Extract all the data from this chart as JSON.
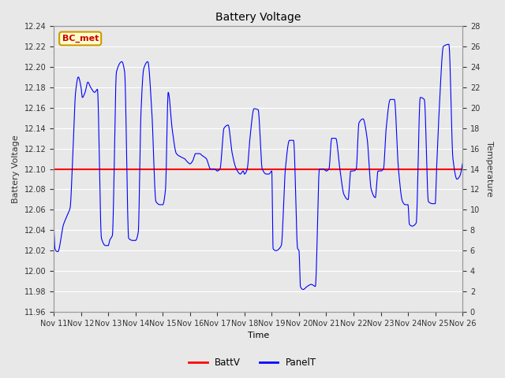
{
  "title": "Battery Voltage",
  "xlabel": "Time",
  "ylabel_left": "Battery Voltage",
  "ylabel_right": "Temperature",
  "annotation_text": "BC_met",
  "annotation_bg": "#FFFFCC",
  "annotation_border": "#CC9900",
  "annotation_text_color": "#CC0000",
  "batt_v_value": 12.1,
  "ylim_left": [
    11.96,
    12.24
  ],
  "ylim_right": [
    0,
    28
  ],
  "yticks_left": [
    11.96,
    11.98,
    12.0,
    12.02,
    12.04,
    12.06,
    12.08,
    12.1,
    12.12,
    12.14,
    12.16,
    12.18,
    12.2,
    12.22,
    12.24
  ],
  "yticks_right": [
    0,
    2,
    4,
    6,
    8,
    10,
    12,
    14,
    16,
    18,
    20,
    22,
    24,
    26,
    28
  ],
  "xtick_labels": [
    "Nov 11",
    "Nov 12",
    "Nov 13",
    "Nov 14",
    "Nov 15",
    "Nov 16",
    "Nov 17",
    "Nov 18",
    "Nov 19",
    "Nov 20",
    "Nov 21",
    "Nov 22",
    "Nov 23",
    "Nov 24",
    "Nov 25",
    "Nov 26"
  ],
  "bg_color": "#E8E8E8",
  "plot_bg_color": "#E8E8E8",
  "line_color_batt": "#FF0000",
  "line_color_panel": "#0000FF",
  "grid_color": "#FFFFFF",
  "font_color": "#333333",
  "panel_t_keypoints_x": [
    0.0,
    0.05,
    0.15,
    0.35,
    0.5,
    0.6,
    0.7,
    0.8,
    0.9,
    1.0,
    1.05,
    1.15,
    1.25,
    1.35,
    1.5,
    1.6,
    1.75,
    1.9,
    2.0,
    2.05,
    2.15,
    2.3,
    2.5,
    2.6,
    2.75,
    2.9,
    3.0,
    3.1,
    3.2,
    3.3,
    3.45,
    3.6,
    3.75,
    3.9,
    4.0,
    4.1,
    4.2,
    4.35,
    4.5,
    4.65,
    4.8,
    4.9,
    5.0,
    5.1,
    5.2,
    5.35,
    5.45,
    5.6,
    5.75,
    5.9,
    6.0,
    6.1,
    6.25,
    6.4,
    6.55,
    6.7,
    6.85,
    6.95,
    7.0,
    7.1,
    7.2,
    7.35,
    7.5,
    7.65,
    7.8,
    7.9,
    8.0,
    8.05,
    8.15,
    8.35,
    8.5,
    8.65,
    8.8,
    8.95,
    9.0,
    9.05,
    9.15,
    9.3,
    9.45,
    9.6,
    9.75,
    9.9,
    10.0,
    10.1,
    10.2,
    10.35,
    10.5,
    10.65,
    10.8,
    10.9,
    11.0,
    11.1,
    11.2,
    11.35,
    11.5,
    11.65,
    11.8,
    11.9,
    12.0,
    12.1,
    12.2,
    12.35,
    12.5,
    12.65,
    12.8,
    12.9,
    13.0,
    13.05,
    13.15,
    13.3,
    13.45,
    13.6,
    13.75,
    13.9,
    14.0,
    14.05,
    14.15,
    14.3,
    14.5,
    14.65,
    14.8,
    14.9,
    15.0
  ],
  "panel_t_keypoints_y": [
    12.044,
    12.021,
    12.019,
    12.045,
    12.055,
    12.062,
    12.115,
    12.175,
    12.19,
    12.18,
    12.17,
    12.175,
    12.185,
    12.18,
    12.175,
    12.178,
    12.032,
    12.025,
    12.025,
    12.03,
    12.035,
    12.195,
    12.205,
    12.195,
    12.032,
    12.03,
    12.03,
    12.038,
    12.155,
    12.198,
    12.205,
    12.155,
    12.068,
    12.065,
    12.065,
    12.08,
    12.175,
    12.138,
    12.115,
    12.112,
    12.11,
    12.107,
    12.105,
    12.108,
    12.115,
    12.115,
    12.113,
    12.11,
    12.1,
    12.1,
    12.098,
    12.1,
    12.14,
    12.143,
    12.115,
    12.1,
    12.095,
    12.098,
    12.095,
    12.1,
    12.13,
    12.159,
    12.158,
    12.1,
    12.095,
    12.095,
    12.098,
    12.022,
    12.02,
    12.025,
    12.1,
    12.128,
    12.128,
    12.022,
    12.02,
    11.985,
    11.982,
    11.985,
    11.987,
    11.985,
    12.1,
    12.1,
    12.098,
    12.1,
    12.13,
    12.13,
    12.1,
    12.075,
    12.07,
    12.098,
    12.098,
    12.1,
    12.145,
    12.149,
    12.13,
    12.08,
    12.072,
    12.098,
    12.098,
    12.1,
    12.14,
    12.168,
    12.168,
    12.1,
    12.068,
    12.065,
    12.065,
    12.046,
    12.044,
    12.047,
    12.17,
    12.168,
    12.068,
    12.066,
    12.066,
    12.1,
    12.16,
    12.22,
    12.222,
    12.11,
    12.09,
    12.093,
    12.105
  ]
}
